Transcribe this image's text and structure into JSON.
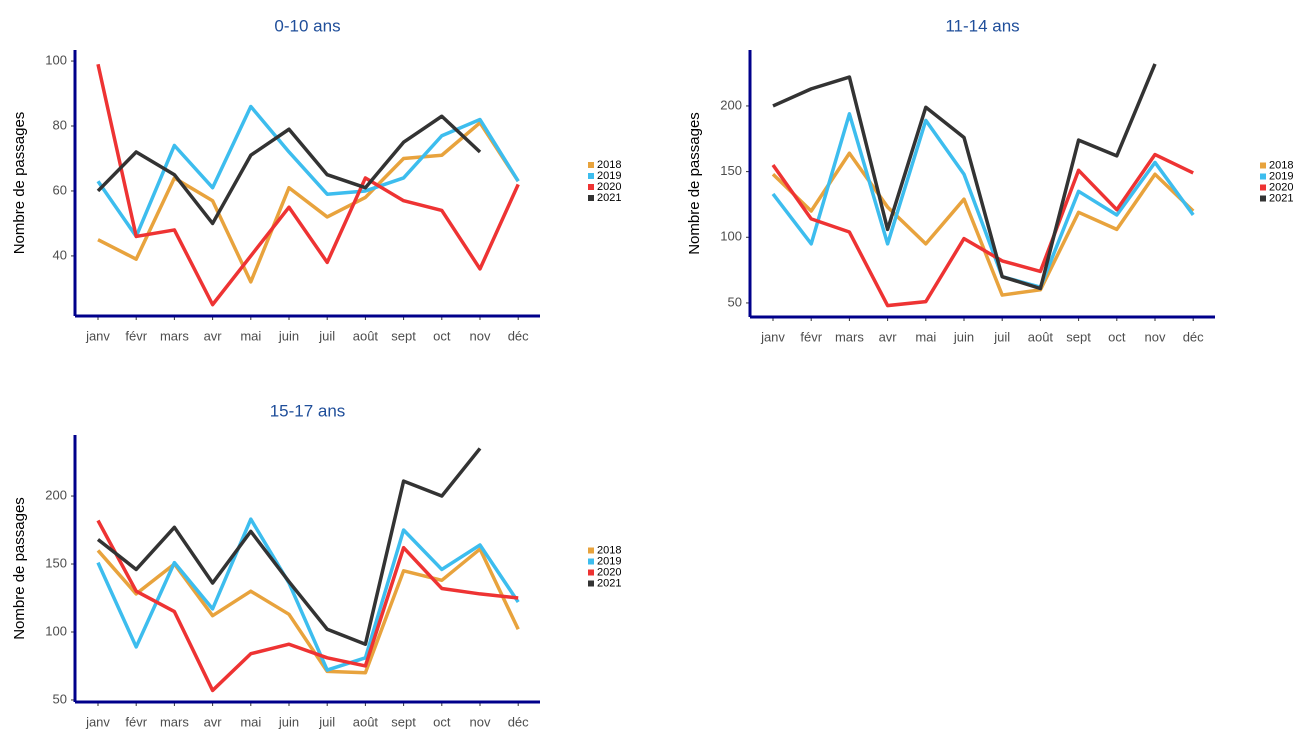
{
  "chart_data": [
    {
      "type": "line",
      "title": "0-10 ans",
      "y_label": "Nombre de passages",
      "categories": [
        "janv",
        "févr",
        "mars",
        "avr",
        "mai",
        "juin",
        "juil",
        "août",
        "sept",
        "oct",
        "nov",
        "déc"
      ],
      "ylim": [
        21.5,
        103.4
      ],
      "yticks": [
        40,
        60,
        80,
        100
      ],
      "legend": "right",
      "series": [
        {
          "name": "2018",
          "color": "#E8A33D",
          "values": [
            45,
            39,
            64,
            57,
            32,
            61,
            52,
            58,
            70,
            71,
            81,
            63
          ]
        },
        {
          "name": "2019",
          "color": "#3DBDEE",
          "values": [
            63,
            46,
            74,
            61,
            86,
            72,
            59,
            60,
            64,
            77,
            82,
            63
          ]
        },
        {
          "name": "2020",
          "color": "#EE3333",
          "values": [
            99,
            46,
            48,
            25,
            40,
            55,
            38,
            64,
            57,
            54,
            36,
            62
          ]
        },
        {
          "name": "2021",
          "color": "#333333",
          "values": [
            60,
            72,
            65,
            50,
            71,
            79,
            65,
            61,
            75,
            83,
            72,
            null
          ]
        }
      ]
    },
    {
      "type": "line",
      "title": "11-14 ans",
      "y_label": "Nombre de passages",
      "categories": [
        "janv",
        "févr",
        "mars",
        "avr",
        "mai",
        "juin",
        "juil",
        "août",
        "sept",
        "oct",
        "nov",
        "déc"
      ],
      "ylim": [
        39.3,
        242.6
      ],
      "yticks": [
        50,
        100,
        150,
        200
      ],
      "legend": "right",
      "series": [
        {
          "name": "2018",
          "color": "#E8A33D",
          "values": [
            148,
            120,
            164,
            123,
            95,
            129,
            56,
            60,
            119,
            106,
            148,
            120
          ]
        },
        {
          "name": "2019",
          "color": "#3DBDEE",
          "values": [
            133,
            95,
            194,
            95,
            189,
            148,
            70,
            62,
            135,
            117,
            157,
            117
          ]
        },
        {
          "name": "2020",
          "color": "#EE3333",
          "values": [
            155,
            114,
            104,
            48,
            51,
            99,
            82,
            74,
            151,
            121,
            163,
            149
          ]
        },
        {
          "name": "2021",
          "color": "#333333",
          "values": [
            200,
            213,
            222,
            106,
            199,
            176,
            70,
            61,
            174,
            162,
            232,
            null
          ]
        }
      ]
    },
    {
      "type": "line",
      "title": "15-17 ans",
      "y_label": "Nombre de passages",
      "categories": [
        "janv",
        "févr",
        "mars",
        "avr",
        "mai",
        "juin",
        "juil",
        "août",
        "sept",
        "oct",
        "nov",
        "déc"
      ],
      "ylim": [
        48.5,
        244.9
      ],
      "yticks": [
        50,
        100,
        150,
        200
      ],
      "legend": "right",
      "series": [
        {
          "name": "2018",
          "color": "#E8A33D",
          "values": [
            160,
            128,
            150,
            112,
            130,
            113,
            71,
            70,
            145,
            138,
            161,
            102
          ]
        },
        {
          "name": "2019",
          "color": "#3DBDEE",
          "values": [
            151,
            89,
            151,
            117,
            183,
            136,
            72,
            81,
            175,
            146,
            164,
            122
          ]
        },
        {
          "name": "2020",
          "color": "#EE3333",
          "values": [
            182,
            130,
            115,
            57,
            84,
            91,
            81,
            75,
            162,
            132,
            128,
            125
          ]
        },
        {
          "name": "2021",
          "color": "#333333",
          "values": [
            168,
            146,
            177,
            136,
            174,
            137,
            102,
            91,
            211,
            200,
            235,
            null
          ]
        }
      ]
    }
  ]
}
